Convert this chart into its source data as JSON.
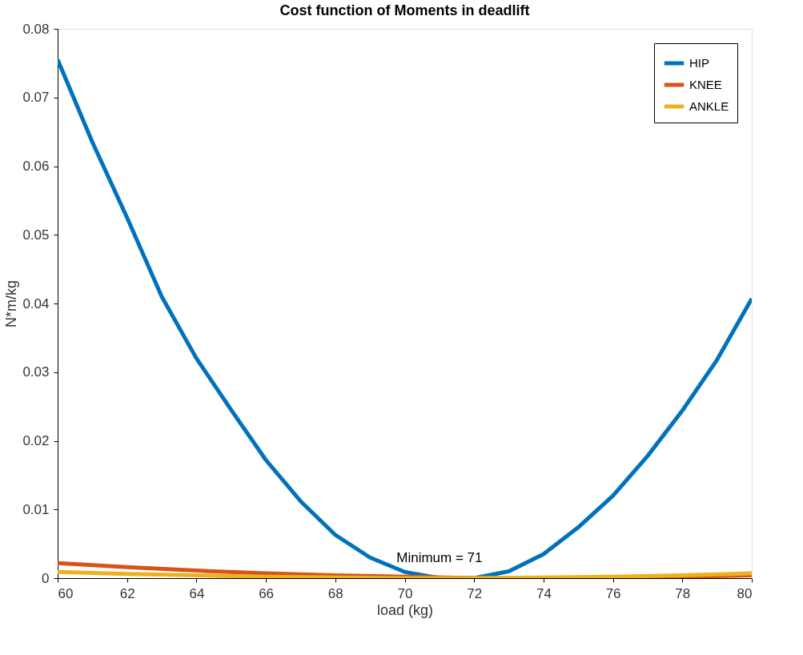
{
  "chart_data": {
    "type": "line",
    "title": "Cost function of Moments in deadlift",
    "xlabel": "load (kg)",
    "ylabel": "N*m/kg",
    "xlim": [
      60,
      80
    ],
    "xticks": [
      60,
      62,
      64,
      66,
      68,
      70,
      72,
      74,
      76,
      78,
      80
    ],
    "ylim": [
      0,
      0.08
    ],
    "yticks": [
      0,
      0.01,
      0.02,
      0.03,
      0.04,
      0.05,
      0.06,
      0.07,
      0.08
    ],
    "grid": false,
    "legend": "top right",
    "marker": "none",
    "line_style": "solid",
    "annotations": [
      {
        "text": "Minimum = 71",
        "x": 71,
        "y": 0
      }
    ],
    "series": [
      {
        "name": "HIP",
        "color": "#0072bd",
        "x": [
          60,
          61,
          62,
          63,
          64,
          65,
          66,
          67,
          68,
          69,
          70,
          71,
          72,
          73,
          74,
          75,
          76,
          77,
          78,
          79,
          80
        ],
        "values": [
          0.0755,
          0.0635,
          0.0525,
          0.041,
          0.032,
          0.0245,
          0.0172,
          0.0112,
          0.0063,
          0.003,
          0.0009,
          0.0,
          0.0,
          0.001,
          0.0035,
          0.0074,
          0.012,
          0.0178,
          0.0244,
          0.0318,
          0.0407
        ]
      },
      {
        "name": "KNEE",
        "color": "#d95319",
        "x": [
          60,
          62,
          64,
          66,
          68,
          70,
          72,
          74,
          76,
          78,
          80
        ],
        "values": [
          0.0022,
          0.0016,
          0.0011,
          0.0007,
          0.0004,
          0.0002,
          0.0,
          0.0,
          0.0001,
          0.0002,
          0.0004
        ]
      },
      {
        "name": "ANKLE",
        "color": "#edb120",
        "x": [
          60,
          62,
          64,
          66,
          68,
          70,
          72,
          74,
          76,
          78,
          80
        ],
        "values": [
          0.0009,
          0.0006,
          0.0004,
          0.0002,
          0.0001,
          0.0,
          0.0,
          0.0001,
          0.0002,
          0.0004,
          0.0007
        ]
      }
    ]
  }
}
